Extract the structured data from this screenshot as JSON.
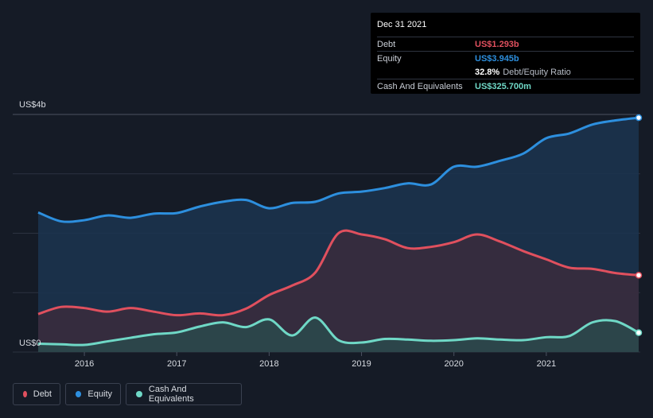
{
  "chart_data": {
    "type": "area",
    "y_top_label": "US$4b",
    "y_bottom_label": "US$0",
    "ylim": [
      0,
      4
    ],
    "xlim": [
      2015.5,
      2022.0
    ],
    "x_ticks": [
      {
        "value": 2016,
        "label": "2016"
      },
      {
        "value": 2017,
        "label": "2017"
      },
      {
        "value": 2018,
        "label": "2018"
      },
      {
        "value": 2019,
        "label": "2019"
      },
      {
        "value": 2020,
        "label": "2020"
      },
      {
        "value": 2021,
        "label": "2021"
      }
    ],
    "grid": true,
    "legend_position": "bottom-left",
    "series": [
      {
        "name": "Equity",
        "color": "#2d8fde",
        "fill": "#1b3450",
        "points": [
          [
            2015.5,
            2.35
          ],
          [
            2015.75,
            2.2
          ],
          [
            2016.0,
            2.22
          ],
          [
            2016.25,
            2.3
          ],
          [
            2016.5,
            2.26
          ],
          [
            2016.75,
            2.33
          ],
          [
            2017.0,
            2.34
          ],
          [
            2017.25,
            2.45
          ],
          [
            2017.5,
            2.53
          ],
          [
            2017.75,
            2.56
          ],
          [
            2018.0,
            2.42
          ],
          [
            2018.25,
            2.51
          ],
          [
            2018.5,
            2.53
          ],
          [
            2018.75,
            2.67
          ],
          [
            2019.0,
            2.7
          ],
          [
            2019.25,
            2.76
          ],
          [
            2019.5,
            2.84
          ],
          [
            2019.75,
            2.82
          ],
          [
            2020.0,
            3.12
          ],
          [
            2020.25,
            3.12
          ],
          [
            2020.5,
            3.22
          ],
          [
            2020.75,
            3.34
          ],
          [
            2021.0,
            3.6
          ],
          [
            2021.25,
            3.68
          ],
          [
            2021.5,
            3.83
          ],
          [
            2021.75,
            3.9
          ],
          [
            2022.0,
            3.945
          ]
        ]
      },
      {
        "name": "Debt",
        "color": "#e0505e",
        "fill": "#3b2c3c",
        "points": [
          [
            2015.5,
            0.64
          ],
          [
            2015.75,
            0.76
          ],
          [
            2016.0,
            0.74
          ],
          [
            2016.25,
            0.68
          ],
          [
            2016.5,
            0.74
          ],
          [
            2016.75,
            0.68
          ],
          [
            2017.0,
            0.62
          ],
          [
            2017.25,
            0.65
          ],
          [
            2017.5,
            0.62
          ],
          [
            2017.75,
            0.73
          ],
          [
            2018.0,
            0.96
          ],
          [
            2018.25,
            1.12
          ],
          [
            2018.5,
            1.34
          ],
          [
            2018.75,
            2.0
          ],
          [
            2019.0,
            1.98
          ],
          [
            2019.25,
            1.9
          ],
          [
            2019.5,
            1.75
          ],
          [
            2019.75,
            1.77
          ],
          [
            2020.0,
            1.85
          ],
          [
            2020.25,
            1.98
          ],
          [
            2020.5,
            1.86
          ],
          [
            2020.75,
            1.7
          ],
          [
            2021.0,
            1.56
          ],
          [
            2021.25,
            1.42
          ],
          [
            2021.5,
            1.4
          ],
          [
            2021.75,
            1.33
          ],
          [
            2022.0,
            1.293
          ]
        ]
      },
      {
        "name": "Cash And Equivalents",
        "color": "#6fd8c6",
        "fill": "#2a4a4c",
        "points": [
          [
            2015.5,
            0.14
          ],
          [
            2015.75,
            0.13
          ],
          [
            2016.0,
            0.12
          ],
          [
            2016.25,
            0.18
          ],
          [
            2016.5,
            0.24
          ],
          [
            2016.75,
            0.3
          ],
          [
            2017.0,
            0.33
          ],
          [
            2017.25,
            0.43
          ],
          [
            2017.5,
            0.5
          ],
          [
            2017.75,
            0.42
          ],
          [
            2018.0,
            0.55
          ],
          [
            2018.25,
            0.28
          ],
          [
            2018.5,
            0.58
          ],
          [
            2018.75,
            0.2
          ],
          [
            2019.0,
            0.16
          ],
          [
            2019.25,
            0.22
          ],
          [
            2019.5,
            0.21
          ],
          [
            2019.75,
            0.19
          ],
          [
            2020.0,
            0.2
          ],
          [
            2020.25,
            0.23
          ],
          [
            2020.5,
            0.21
          ],
          [
            2020.75,
            0.2
          ],
          [
            2021.0,
            0.25
          ],
          [
            2021.25,
            0.27
          ],
          [
            2021.5,
            0.5
          ],
          [
            2021.75,
            0.52
          ],
          [
            2022.0,
            0.3257
          ]
        ]
      }
    ]
  },
  "tooltip": {
    "date": "Dec 31 2021",
    "debt_label": "Debt",
    "debt_value": "US$1.293b",
    "equity_label": "Equity",
    "equity_value": "US$3.945b",
    "ratio_value": "32.8%",
    "ratio_label": "Debt/Equity Ratio",
    "cash_label": "Cash And Equivalents",
    "cash_value": "US$325.700m"
  },
  "legend": {
    "debt": "Debt",
    "equity": "Equity",
    "cash": "Cash And Equivalents"
  },
  "colors": {
    "debt": "#e0505e",
    "equity": "#2d8fde",
    "cash": "#6fd8c6"
  }
}
